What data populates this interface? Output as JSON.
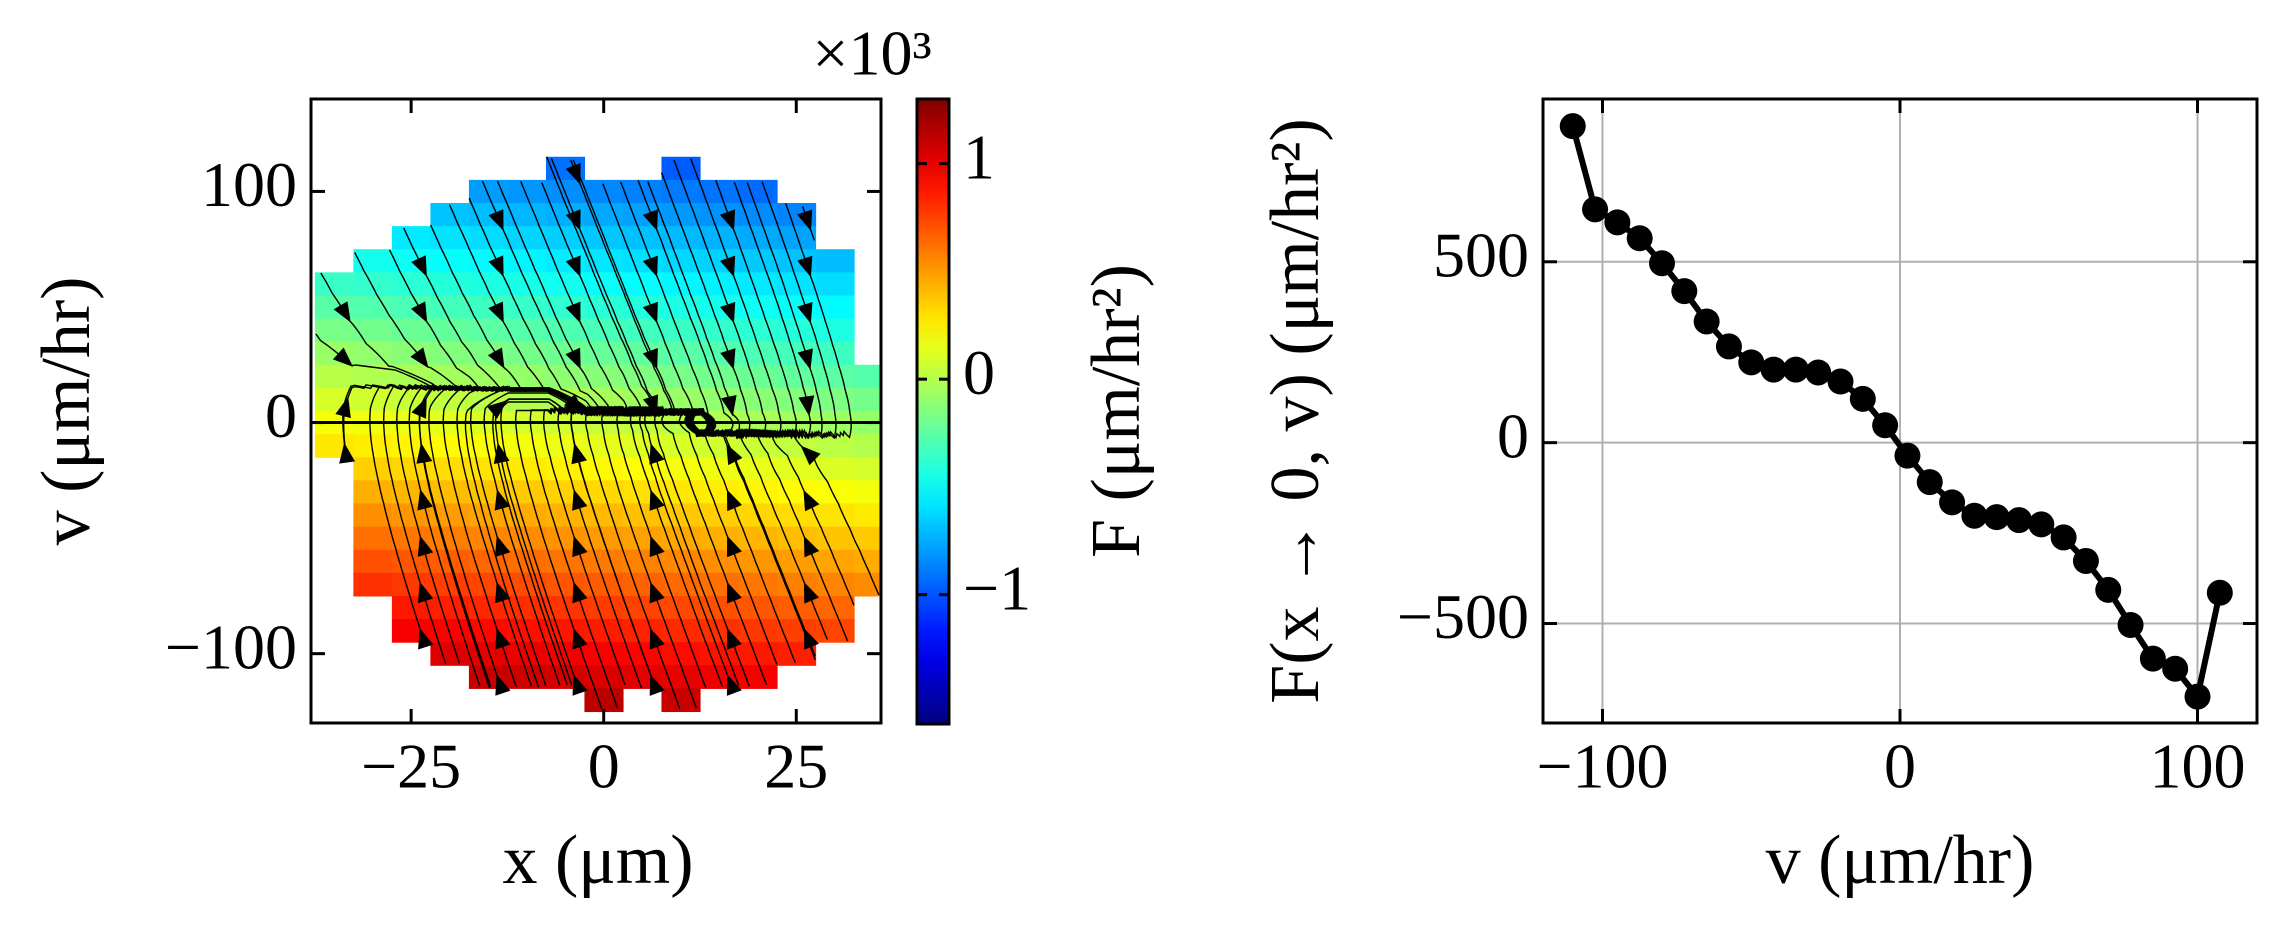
{
  "chart_data": [
    {
      "type": "heatmap",
      "streamplot": true,
      "xlabel": "x (μm)",
      "ylabel": "v (μm/hr)",
      "x": [
        -35,
        -30,
        -25,
        -20,
        -15,
        -10,
        -5,
        0,
        5,
        10,
        15,
        20,
        25,
        30,
        35
      ],
      "y": [
        110,
        100,
        90,
        80,
        70,
        60,
        50,
        40,
        30,
        20,
        10,
        0,
        -10,
        -20,
        -30,
        -40,
        -50,
        -60,
        -70,
        -80,
        -90,
        -100,
        -110,
        -120
      ],
      "values": [
        [
          null,
          null,
          null,
          null,
          null,
          null,
          -0.92,
          null,
          null,
          -0.98,
          null,
          null,
          null,
          null,
          null
        ],
        [
          null,
          null,
          null,
          null,
          -0.79,
          -0.81,
          -0.83,
          -0.85,
          -0.87,
          -0.89,
          -0.91,
          -0.93,
          null,
          null,
          null
        ],
        [
          null,
          null,
          null,
          -0.68,
          -0.7,
          -0.72,
          -0.74,
          -0.76,
          -0.78,
          -0.8,
          -0.82,
          -0.84,
          -0.86,
          null,
          null
        ],
        [
          null,
          null,
          -0.57,
          -0.59,
          -0.61,
          -0.63,
          -0.65,
          -0.67,
          -0.69,
          -0.71,
          -0.73,
          -0.75,
          -0.77,
          null,
          null
        ],
        [
          null,
          -0.46,
          -0.48,
          -0.5,
          -0.52,
          -0.54,
          -0.56,
          -0.58,
          -0.6,
          -0.62,
          -0.64,
          -0.66,
          -0.68,
          -0.7,
          null
        ],
        [
          -0.35,
          -0.37,
          -0.39,
          -0.41,
          -0.43,
          -0.45,
          -0.47,
          -0.49,
          -0.51,
          -0.53,
          -0.55,
          -0.57,
          -0.59,
          -0.61,
          null
        ],
        [
          -0.26,
          -0.28,
          -0.3,
          -0.32,
          -0.34,
          -0.36,
          -0.38,
          -0.4,
          -0.42,
          -0.44,
          -0.46,
          -0.48,
          -0.5,
          -0.52,
          null
        ],
        [
          -0.17,
          -0.19,
          -0.21,
          -0.23,
          -0.25,
          -0.27,
          -0.29,
          -0.31,
          -0.33,
          -0.35,
          -0.37,
          -0.39,
          -0.41,
          -0.43,
          null
        ],
        [
          -0.08,
          -0.1,
          -0.12,
          -0.14,
          -0.16,
          -0.18,
          -0.2,
          -0.22,
          -0.24,
          -0.26,
          -0.28,
          -0.3,
          -0.32,
          -0.34,
          null
        ],
        [
          0.01,
          -0.01,
          -0.03,
          -0.05,
          -0.07,
          -0.09,
          -0.11,
          -0.13,
          -0.15,
          -0.17,
          -0.19,
          -0.21,
          -0.23,
          -0.25,
          -0.27
        ],
        [
          0.1,
          0.08,
          0.06,
          0.04,
          0.02,
          0,
          -0.02,
          -0.04,
          -0.06,
          -0.08,
          -0.1,
          -0.12,
          -0.14,
          -0.16,
          -0.18
        ],
        [
          0.19,
          0.17,
          0.15,
          0.13,
          0.11,
          0.09,
          0.07,
          0.05,
          0.03,
          0.01,
          -0.01,
          -0.03,
          -0.05,
          -0.07,
          -0.09
        ],
        [
          0.28,
          0.26,
          0.24,
          0.22,
          0.2,
          0.18,
          0.16,
          0.14,
          0.12,
          0.1,
          0.08,
          0.06,
          0.04,
          0.02,
          0
        ],
        [
          null,
          0.35,
          0.33,
          0.31,
          0.29,
          0.27,
          0.25,
          0.23,
          0.21,
          0.19,
          0.17,
          0.15,
          0.13,
          0.11,
          0.09
        ],
        [
          null,
          0.44,
          0.42,
          0.4,
          0.38,
          0.36,
          0.34,
          0.32,
          0.3,
          0.28,
          0.26,
          0.24,
          0.22,
          0.2,
          0.18
        ],
        [
          null,
          0.53,
          0.51,
          0.49,
          0.47,
          0.45,
          0.43,
          0.41,
          0.39,
          0.37,
          0.35,
          0.33,
          0.31,
          0.29,
          0.27
        ],
        [
          null,
          0.62,
          0.6,
          0.58,
          0.56,
          0.54,
          0.52,
          0.5,
          0.48,
          0.46,
          0.44,
          0.42,
          0.4,
          0.38,
          0.36
        ],
        [
          null,
          0.71,
          0.69,
          0.67,
          0.65,
          0.63,
          0.61,
          0.59,
          0.57,
          0.55,
          0.53,
          0.51,
          0.49,
          0.47,
          0.45
        ],
        [
          null,
          0.8,
          0.78,
          0.76,
          0.74,
          0.72,
          0.7,
          0.68,
          0.66,
          0.64,
          0.62,
          0.6,
          0.58,
          0.56,
          0.54
        ],
        [
          null,
          null,
          0.87,
          0.85,
          0.83,
          0.81,
          0.79,
          0.77,
          0.75,
          0.73,
          0.71,
          0.69,
          0.67,
          0.65,
          null
        ],
        [
          null,
          null,
          0.96,
          0.94,
          0.92,
          0.9,
          0.88,
          0.86,
          0.84,
          0.82,
          0.8,
          0.78,
          0.76,
          0.74,
          null
        ],
        [
          null,
          null,
          null,
          1.03,
          1.01,
          0.99,
          0.97,
          0.95,
          0.93,
          0.91,
          0.89,
          0.87,
          0.85,
          null,
          null
        ],
        [
          null,
          null,
          null,
          null,
          1.1,
          1.08,
          1.06,
          1.04,
          1.02,
          1.0,
          0.98,
          0.96,
          null,
          null,
          null
        ],
        [
          null,
          null,
          null,
          null,
          null,
          null,
          null,
          1.13,
          null,
          1.09,
          null,
          null,
          null,
          null,
          null
        ]
      ],
      "xlim": [
        -38,
        36
      ],
      "ylim": [
        -130,
        140
      ],
      "xticks": [
        {
          "value": -25,
          "label": "−25"
        },
        0,
        25
      ],
      "yticks": [
        {
          "value": -100,
          "label": "−100"
        },
        0,
        100
      ],
      "colorbar": {
        "label": "F (μm/hr²)",
        "offset_label": "×10³",
        "colormap": "jet",
        "clim": [
          -1.6,
          1.3
        ],
        "ticks": [
          {
            "value": -1,
            "label": "−1"
          },
          0,
          1
        ]
      }
    },
    {
      "type": "line",
      "marker": "o",
      "color": "#000000",
      "grid": true,
      "xlabel": "v (μm/hr)",
      "ylabel": "F(x → 0, v) (μm/hr²)",
      "x": [
        -110,
        -102.5,
        -95,
        -87.5,
        -80,
        -72.5,
        -65,
        -57.5,
        -50,
        -42.5,
        -35,
        -27.5,
        -20,
        -12.5,
        -5,
        2.5,
        10,
        17.5,
        25,
        32.5,
        40,
        47.5,
        55,
        62.5,
        70,
        77.5,
        85,
        92.5,
        100,
        107.5
      ],
      "values": [
        875,
        645,
        609,
        565,
        496,
        419,
        335,
        266,
        222,
        202,
        202,
        194,
        169,
        121,
        48,
        -36,
        -109,
        -165,
        -202,
        -206,
        -214,
        -226,
        -262,
        -327,
        -407,
        -504,
        -597,
        -625,
        -702,
        -415
      ],
      "xlim": [
        -120,
        120
      ],
      "ylim": [
        -775,
        950
      ],
      "xticks": [
        {
          "value": -100,
          "label": "−100"
        },
        0,
        100
      ],
      "yticks": [
        {
          "value": -500,
          "label": "−500"
        },
        0,
        500
      ]
    }
  ]
}
